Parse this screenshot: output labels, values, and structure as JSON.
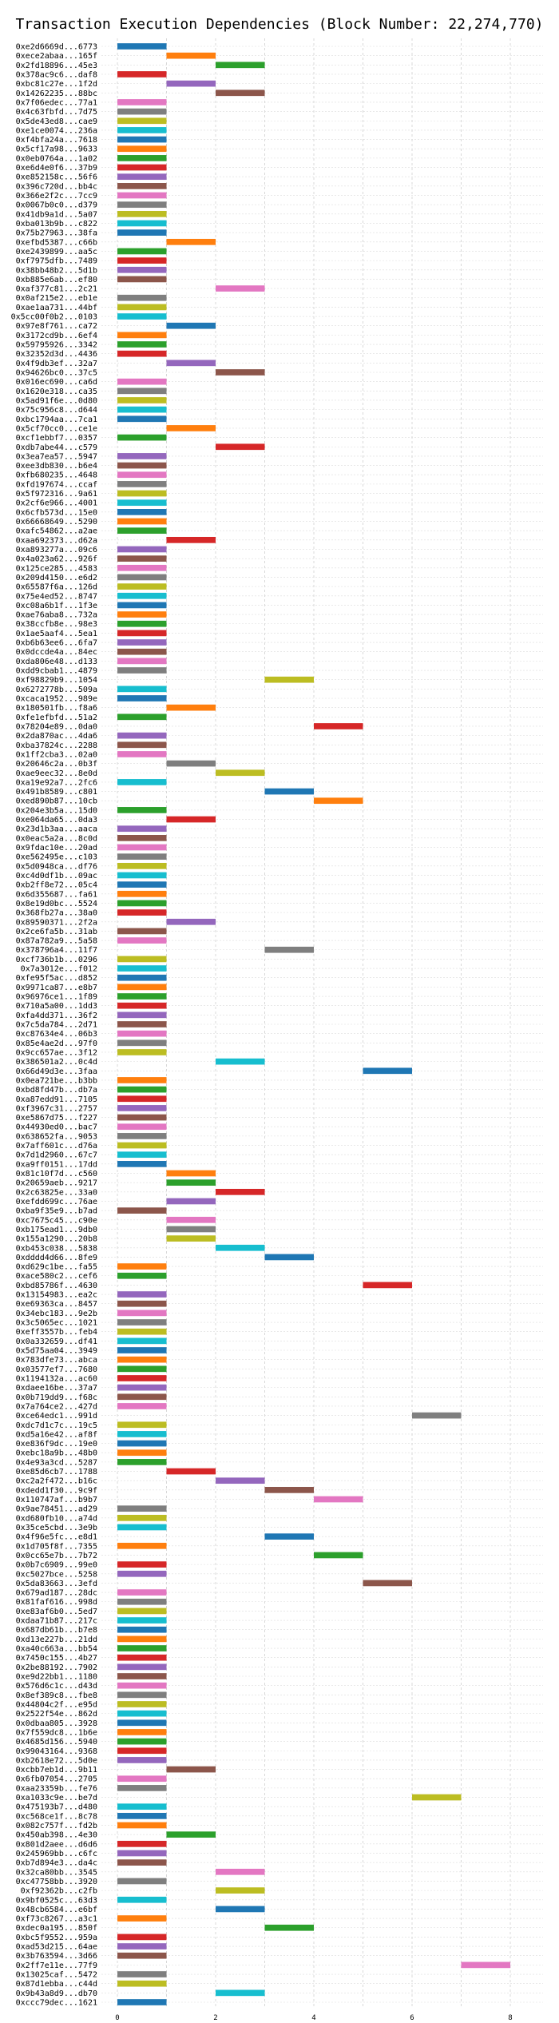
{
  "chart_data": {
    "type": "bar",
    "orientation": "horizontal-gantt",
    "title": "Transaction Execution Dependencies (Block Number: 22,274,770)",
    "xlabel": "",
    "ylabel": "",
    "xlim": [
      0,
      8.4
    ],
    "x_ticks": [
      0,
      2,
      4,
      6,
      8
    ],
    "grid": true,
    "palette": [
      "#1f77b4",
      "#ff7f0e",
      "#2ca02c",
      "#d62728",
      "#9467bd",
      "#8c564b",
      "#e377c2",
      "#7f7f7f",
      "#bcbd22",
      "#17becf"
    ],
    "transactions": [
      {
        "label": "0xe2d6669d...6773",
        "start": 0,
        "end": 1
      },
      {
        "label": "0xece2abaa...165f",
        "start": 1,
        "end": 2
      },
      {
        "label": "0x2fd18896...45e3",
        "start": 2,
        "end": 3
      },
      {
        "label": "0x378ac9c6...daf8",
        "start": 0,
        "end": 1
      },
      {
        "label": "0xbc81c27e...1f2d",
        "start": 1,
        "end": 2
      },
      {
        "label": "0x14262235...88bc",
        "start": 2,
        "end": 3
      },
      {
        "label": "0x7f06edec...77a1",
        "start": 0,
        "end": 1
      },
      {
        "label": "0x4c63fbfd...7d75",
        "start": 0,
        "end": 1
      },
      {
        "label": "0x5de43ed8...cae9",
        "start": 0,
        "end": 1
      },
      {
        "label": "0xe1ce0074...236a",
        "start": 0,
        "end": 1
      },
      {
        "label": "0xf4bfa24a...7618",
        "start": 0,
        "end": 1
      },
      {
        "label": "0x5cf17a98...9633",
        "start": 0,
        "end": 1
      },
      {
        "label": "0x0eb0764a...1a02",
        "start": 0,
        "end": 1
      },
      {
        "label": "0xe6d4e0f6...37b9",
        "start": 0,
        "end": 1
      },
      {
        "label": "0xe852158c...56f6",
        "start": 0,
        "end": 1
      },
      {
        "label": "0x396c720d...bb4c",
        "start": 0,
        "end": 1
      },
      {
        "label": "0x366e2f2c...7cc9",
        "start": 0,
        "end": 1
      },
      {
        "label": "0x0067b0c0...d379",
        "start": 0,
        "end": 1
      },
      {
        "label": "0x41db9a1d...5a07",
        "start": 0,
        "end": 1
      },
      {
        "label": "0xba013b9b...c822",
        "start": 0,
        "end": 1
      },
      {
        "label": "0x75b27963...38fa",
        "start": 0,
        "end": 1
      },
      {
        "label": "0xefbd5387...c66b",
        "start": 1,
        "end": 2
      },
      {
        "label": "0xe2439899...aa5c",
        "start": 0,
        "end": 1
      },
      {
        "label": "0xf7975dfb...7489",
        "start": 0,
        "end": 1
      },
      {
        "label": "0x38bb48b2...5d1b",
        "start": 0,
        "end": 1
      },
      {
        "label": "0xb885e6ab...ef80",
        "start": 0,
        "end": 1
      },
      {
        "label": "0xaf377c81...2c21",
        "start": 2,
        "end": 3
      },
      {
        "label": "0x0af215e2...eb1e",
        "start": 0,
        "end": 1
      },
      {
        "label": "0xae1aa731...44bf",
        "start": 0,
        "end": 1
      },
      {
        "label": "0x5cc00f0b2...0103",
        "start": 0,
        "end": 1
      },
      {
        "label": "0x97e8f761...ca72",
        "start": 1,
        "end": 2
      },
      {
        "label": "0x3172cd9b...6ef4",
        "start": 0,
        "end": 1
      },
      {
        "label": "0x59795926...3342",
        "start": 0,
        "end": 1
      },
      {
        "label": "0x32352d3d...4436",
        "start": 0,
        "end": 1
      },
      {
        "label": "0x4f9db3ef...32a7",
        "start": 1,
        "end": 2
      },
      {
        "label": "0x94626bc0...37c5",
        "start": 2,
        "end": 3
      },
      {
        "label": "0x016ec690...ca6d",
        "start": 0,
        "end": 1
      },
      {
        "label": "0x1620e318...ca35",
        "start": 0,
        "end": 1
      },
      {
        "label": "0x5ad91f6e...0d80",
        "start": 0,
        "end": 1
      },
      {
        "label": "0x75c956c8...d644",
        "start": 0,
        "end": 1
      },
      {
        "label": "0xbc1794aa...7ca1",
        "start": 0,
        "end": 1
      },
      {
        "label": "0x5cf70cc0...ce1e",
        "start": 1,
        "end": 2
      },
      {
        "label": "0xcf1ebbf7...0357",
        "start": 0,
        "end": 1
      },
      {
        "label": "0xdb7abe44...c579",
        "start": 2,
        "end": 3
      },
      {
        "label": "0x3ea7ea57...5947",
        "start": 0,
        "end": 1
      },
      {
        "label": "0xee3db830...b6e4",
        "start": 0,
        "end": 1
      },
      {
        "label": "0xfb680235...4648",
        "start": 0,
        "end": 1
      },
      {
        "label": "0xfd197674...ccaf",
        "start": 0,
        "end": 1
      },
      {
        "label": "0x5f972316...9a61",
        "start": 0,
        "end": 1
      },
      {
        "label": "0x2cf6e966...4001",
        "start": 0,
        "end": 1
      },
      {
        "label": "0x6cfb573d...15e0",
        "start": 0,
        "end": 1
      },
      {
        "label": "0x66668649...5290",
        "start": 0,
        "end": 1
      },
      {
        "label": "0xafc54862...a2ae",
        "start": 0,
        "end": 1
      },
      {
        "label": "0xaa692373...d62a",
        "start": 1,
        "end": 2
      },
      {
        "label": "0xa893277a...09c6",
        "start": 0,
        "end": 1
      },
      {
        "label": "0x4a023a62...926f",
        "start": 0,
        "end": 1
      },
      {
        "label": "0x125ce285...4583",
        "start": 0,
        "end": 1
      },
      {
        "label": "0x209d4150...e6d2",
        "start": 0,
        "end": 1
      },
      {
        "label": "0x65587f6a...126d",
        "start": 0,
        "end": 1
      },
      {
        "label": "0x75e4ed52...8747",
        "start": 0,
        "end": 1
      },
      {
        "label": "0xc08a6b1f...1f3e",
        "start": 0,
        "end": 1
      },
      {
        "label": "0xae76aba8...732a",
        "start": 0,
        "end": 1
      },
      {
        "label": "0x38ccfb8e...98e3",
        "start": 0,
        "end": 1
      },
      {
        "label": "0x1ae5aaf4...5ea1",
        "start": 0,
        "end": 1
      },
      {
        "label": "0xb6b63ee6...6fa7",
        "start": 0,
        "end": 1
      },
      {
        "label": "0x0dccde4a...84ec",
        "start": 0,
        "end": 1
      },
      {
        "label": "0xda806e48...d133",
        "start": 0,
        "end": 1
      },
      {
        "label": "0xdd9cbab1...4879",
        "start": 0,
        "end": 1
      },
      {
        "label": "0xf98829b9...1054",
        "start": 3,
        "end": 4
      },
      {
        "label": "0x6272778b...509a",
        "start": 0,
        "end": 1
      },
      {
        "label": "0xcaca1952...989e",
        "start": 0,
        "end": 1
      },
      {
        "label": "0x180501fb...f8a6",
        "start": 1,
        "end": 2
      },
      {
        "label": "0xfe1efbfd...51a2",
        "start": 0,
        "end": 1
      },
      {
        "label": "0x78204e89...0da0",
        "start": 4,
        "end": 5
      },
      {
        "label": "0x2da870ac...4da6",
        "start": 0,
        "end": 1
      },
      {
        "label": "0xba37824c...2288",
        "start": 0,
        "end": 1
      },
      {
        "label": "0x1ff2cba3...02a0",
        "start": 0,
        "end": 1
      },
      {
        "label": "0x20646c2a...0b3f",
        "start": 1,
        "end": 2
      },
      {
        "label": "0xae9eec32...8e0d",
        "start": 2,
        "end": 3
      },
      {
        "label": "0xa19e92a7...2fc6",
        "start": 0,
        "end": 1
      },
      {
        "label": "0x491b8589...c801",
        "start": 3,
        "end": 4
      },
      {
        "label": "0xed890b87...10cb",
        "start": 4,
        "end": 5
      },
      {
        "label": "0x204e3b5a...15d0",
        "start": 0,
        "end": 1
      },
      {
        "label": "0xe064da65...0da3",
        "start": 1,
        "end": 2
      },
      {
        "label": "0x23d1b3aa...aaca",
        "start": 0,
        "end": 1
      },
      {
        "label": "0x0eac5a2a...8c0d",
        "start": 0,
        "end": 1
      },
      {
        "label": "0x9fdac10e...20ad",
        "start": 0,
        "end": 1
      },
      {
        "label": "0xe562495e...c103",
        "start": 0,
        "end": 1
      },
      {
        "label": "0x5d0948ca...df76",
        "start": 0,
        "end": 1
      },
      {
        "label": "0xc4d0df1b...09ac",
        "start": 0,
        "end": 1
      },
      {
        "label": "0xb2ff8e72...05c4",
        "start": 0,
        "end": 1
      },
      {
        "label": "0x6d355687...fa61",
        "start": 0,
        "end": 1
      },
      {
        "label": "0x8e19d0bc...5524",
        "start": 0,
        "end": 1
      },
      {
        "label": "0x368fb27a...38a0",
        "start": 0,
        "end": 1
      },
      {
        "label": "0x89590371...2f2a",
        "start": 1,
        "end": 2
      },
      {
        "label": "0x2ce6fa5b...31ab",
        "start": 0,
        "end": 1
      },
      {
        "label": "0x87a782a9...5a58",
        "start": 0,
        "end": 1
      },
      {
        "label": "0x378796a4...11f7",
        "start": 3,
        "end": 4
      },
      {
        "label": "0xcf736b1b...0296",
        "start": 0,
        "end": 1
      },
      {
        "label": "0x7a3012e...f012",
        "start": 0,
        "end": 1
      },
      {
        "label": "0xfe95f5ac...d852",
        "start": 0,
        "end": 1
      },
      {
        "label": "0x9971ca87...e8b7",
        "start": 0,
        "end": 1
      },
      {
        "label": "0x96976ce1...1f89",
        "start": 0,
        "end": 1
      },
      {
        "label": "0x710a5a00...1dd3",
        "start": 0,
        "end": 1
      },
      {
        "label": "0xfa4dd371...36f2",
        "start": 0,
        "end": 1
      },
      {
        "label": "0x7c5da784...2d71",
        "start": 0,
        "end": 1
      },
      {
        "label": "0xc87634e4...06b3",
        "start": 0,
        "end": 1
      },
      {
        "label": "0x85e4ae2d...97f0",
        "start": 0,
        "end": 1
      },
      {
        "label": "0x9cc657ae...3f12",
        "start": 0,
        "end": 1
      },
      {
        "label": "0x386501a2...0c4d",
        "start": 2,
        "end": 3
      },
      {
        "label": "0x66d49d3e...3faa",
        "start": 5,
        "end": 6
      },
      {
        "label": "0x0ea721be...b3bb",
        "start": 0,
        "end": 1
      },
      {
        "label": "0xbd8fd47b...db7a",
        "start": 0,
        "end": 1
      },
      {
        "label": "0xa87edd91...7105",
        "start": 0,
        "end": 1
      },
      {
        "label": "0xf3967c31...2757",
        "start": 0,
        "end": 1
      },
      {
        "label": "0xe5867d75...f227",
        "start": 0,
        "end": 1
      },
      {
        "label": "0x44930ed0...bac7",
        "start": 0,
        "end": 1
      },
      {
        "label": "0x638652fa...9053",
        "start": 0,
        "end": 1
      },
      {
        "label": "0x7aff601c...d76a",
        "start": 0,
        "end": 1
      },
      {
        "label": "0x7d1d2960...67c7",
        "start": 0,
        "end": 1
      },
      {
        "label": "0xa9ff0151...17dd",
        "start": 0,
        "end": 1
      },
      {
        "label": "0x81c10f7d...c560",
        "start": 1,
        "end": 2
      },
      {
        "label": "0x20659aeb...9217",
        "start": 1,
        "end": 2
      },
      {
        "label": "0x2c63825e...33a0",
        "start": 2,
        "end": 3
      },
      {
        "label": "0xefdd699c...76ae",
        "start": 1,
        "end": 2
      },
      {
        "label": "0xba9f35e9...b7ad",
        "start": 0,
        "end": 1
      },
      {
        "label": "0xc7675c45...c90e",
        "start": 1,
        "end": 2
      },
      {
        "label": "0xb175ead1...9db0",
        "start": 1,
        "end": 2
      },
      {
        "label": "0x155a1290...20b8",
        "start": 1,
        "end": 2
      },
      {
        "label": "0xb453c038...5838",
        "start": 2,
        "end": 3
      },
      {
        "label": "0xdddd4d66...8fe9",
        "start": 3,
        "end": 4
      },
      {
        "label": "0xd629c1be...fa55",
        "start": 0,
        "end": 1
      },
      {
        "label": "0xace580c2...cef6",
        "start": 0,
        "end": 1
      },
      {
        "label": "0xbd85786f...4630",
        "start": 5,
        "end": 6
      },
      {
        "label": "0x13154983...ea2c",
        "start": 0,
        "end": 1
      },
      {
        "label": "0xe69363ca...8457",
        "start": 0,
        "end": 1
      },
      {
        "label": "0x34ebc183...9e2b",
        "start": 0,
        "end": 1
      },
      {
        "label": "0x3c5065ec...1021",
        "start": 0,
        "end": 1
      },
      {
        "label": "0xeff3557b...feb4",
        "start": 0,
        "end": 1
      },
      {
        "label": "0x0a332659...df41",
        "start": 0,
        "end": 1
      },
      {
        "label": "0x5d75aa04...3949",
        "start": 0,
        "end": 1
      },
      {
        "label": "0x783dfe73...abca",
        "start": 0,
        "end": 1
      },
      {
        "label": "0x03577ef7...7680",
        "start": 0,
        "end": 1
      },
      {
        "label": "0x1194132a...ac60",
        "start": 0,
        "end": 1
      },
      {
        "label": "0xdaee16be...37a7",
        "start": 0,
        "end": 1
      },
      {
        "label": "0x0b719dd9...f68c",
        "start": 0,
        "end": 1
      },
      {
        "label": "0x7a764ce2...427d",
        "start": 0,
        "end": 1
      },
      {
        "label": "0xce64edc1...991d",
        "start": 6,
        "end": 7
      },
      {
        "label": "0xdc7d1c7c...19c5",
        "start": 0,
        "end": 1
      },
      {
        "label": "0xd5a16e42...af8f",
        "start": 0,
        "end": 1
      },
      {
        "label": "0xe836f9dc...19e0",
        "start": 0,
        "end": 1
      },
      {
        "label": "0xebc18a9b...48b0",
        "start": 0,
        "end": 1
      },
      {
        "label": "0x4e93a3cd...5287",
        "start": 0,
        "end": 1
      },
      {
        "label": "0xe85d6cb7...1788",
        "start": 1,
        "end": 2
      },
      {
        "label": "0xc2a2f472...b16c",
        "start": 2,
        "end": 3
      },
      {
        "label": "0xdedd1f30...9c9f",
        "start": 3,
        "end": 4
      },
      {
        "label": "0x110747af...b9b7",
        "start": 4,
        "end": 5
      },
      {
        "label": "0x9ae78451...ad29",
        "start": 0,
        "end": 1
      },
      {
        "label": "0xd680fb10...a74d",
        "start": 0,
        "end": 1
      },
      {
        "label": "0x35ce5cbd...3e9b",
        "start": 0,
        "end": 1
      },
      {
        "label": "0x4f96e5fc...e8d1",
        "start": 3,
        "end": 4
      },
      {
        "label": "0x1d705f8f...7355",
        "start": 0,
        "end": 1
      },
      {
        "label": "0x0cc65e7b...7b72",
        "start": 4,
        "end": 5
      },
      {
        "label": "0x0b7c6909...99e0",
        "start": 0,
        "end": 1
      },
      {
        "label": "0xc5027bce...5258",
        "start": 0,
        "end": 1
      },
      {
        "label": "0x5da83663...3efd",
        "start": 5,
        "end": 6
      },
      {
        "label": "0x679ad187...28dc",
        "start": 0,
        "end": 1
      },
      {
        "label": "0x81faf616...998d",
        "start": 0,
        "end": 1
      },
      {
        "label": "0xe83af6b0...5ed7",
        "start": 0,
        "end": 1
      },
      {
        "label": "0xdaa71b87...217c",
        "start": 0,
        "end": 1
      },
      {
        "label": "0x687db61b...b7e8",
        "start": 0,
        "end": 1
      },
      {
        "label": "0xd13e227b...21dd",
        "start": 0,
        "end": 1
      },
      {
        "label": "0xa40c663a...bb54",
        "start": 0,
        "end": 1
      },
      {
        "label": "0x7450c155...4b27",
        "start": 0,
        "end": 1
      },
      {
        "label": "0x2be88192...7902",
        "start": 0,
        "end": 1
      },
      {
        "label": "0xe9d22bb1...1180",
        "start": 0,
        "end": 1
      },
      {
        "label": "0x576d6c1c...d43d",
        "start": 0,
        "end": 1
      },
      {
        "label": "0x8ef389c8...fbe8",
        "start": 0,
        "end": 1
      },
      {
        "label": "0x44804c2f...e95d",
        "start": 0,
        "end": 1
      },
      {
        "label": "0x2522f54e...862d",
        "start": 0,
        "end": 1
      },
      {
        "label": "0x0dbaa805...3928",
        "start": 0,
        "end": 1
      },
      {
        "label": "0x7f559dc8...1b6e",
        "start": 0,
        "end": 1
      },
      {
        "label": "0x4685d156...5940",
        "start": 0,
        "end": 1
      },
      {
        "label": "0x99043164...9368",
        "start": 0,
        "end": 1
      },
      {
        "label": "0xb2618e72...5d0e",
        "start": 0,
        "end": 1
      },
      {
        "label": "0xcbb7eb1d...9b11",
        "start": 1,
        "end": 2
      },
      {
        "label": "0x6fb07054...2705",
        "start": 0,
        "end": 1
      },
      {
        "label": "0xaa23359b...fe76",
        "start": 0,
        "end": 1
      },
      {
        "label": "0xa1033c9e...be7d",
        "start": 6,
        "end": 7
      },
      {
        "label": "0x475193b7...d480",
        "start": 0,
        "end": 1
      },
      {
        "label": "0xc568ce1f...8c78",
        "start": 0,
        "end": 1
      },
      {
        "label": "0x082c757f...fd2b",
        "start": 0,
        "end": 1
      },
      {
        "label": "0x450ab398...4e30",
        "start": 1,
        "end": 2
      },
      {
        "label": "0x801d2aee...d6d6",
        "start": 0,
        "end": 1
      },
      {
        "label": "0x245969bb...c6fc",
        "start": 0,
        "end": 1
      },
      {
        "label": "0xb7d894e3...da4c",
        "start": 0,
        "end": 1
      },
      {
        "label": "0x32ca80bb...3545",
        "start": 2,
        "end": 3
      },
      {
        "label": "0xc47758bb...3920",
        "start": 0,
        "end": 1
      },
      {
        "label": "0xf92362b...c2fb",
        "start": 2,
        "end": 3
      },
      {
        "label": "0x9bf0525c...63d3",
        "start": 0,
        "end": 1
      },
      {
        "label": "0x48cb6584...e6bf",
        "start": 2,
        "end": 3
      },
      {
        "label": "0xf73c8267...a3c1",
        "start": 0,
        "end": 1
      },
      {
        "label": "0xdec0a195...850f",
        "start": 3,
        "end": 4
      },
      {
        "label": "0xbc5f9552...959a",
        "start": 0,
        "end": 1
      },
      {
        "label": "0xad53d215...64ae",
        "start": 0,
        "end": 1
      },
      {
        "label": "0x3b763594...3d66",
        "start": 0,
        "end": 1
      },
      {
        "label": "0x2ff7e11e...77f9",
        "start": 7,
        "end": 8
      },
      {
        "label": "0x13025caf...5472",
        "start": 0,
        "end": 1
      },
      {
        "label": "0x87d1ebba...c44d",
        "start": 0,
        "end": 1
      },
      {
        "label": "0x9b43a8d9...db70",
        "start": 2,
        "end": 3
      },
      {
        "label": "0xccc79dec...1621",
        "start": 0,
        "end": 1
      }
    ]
  }
}
